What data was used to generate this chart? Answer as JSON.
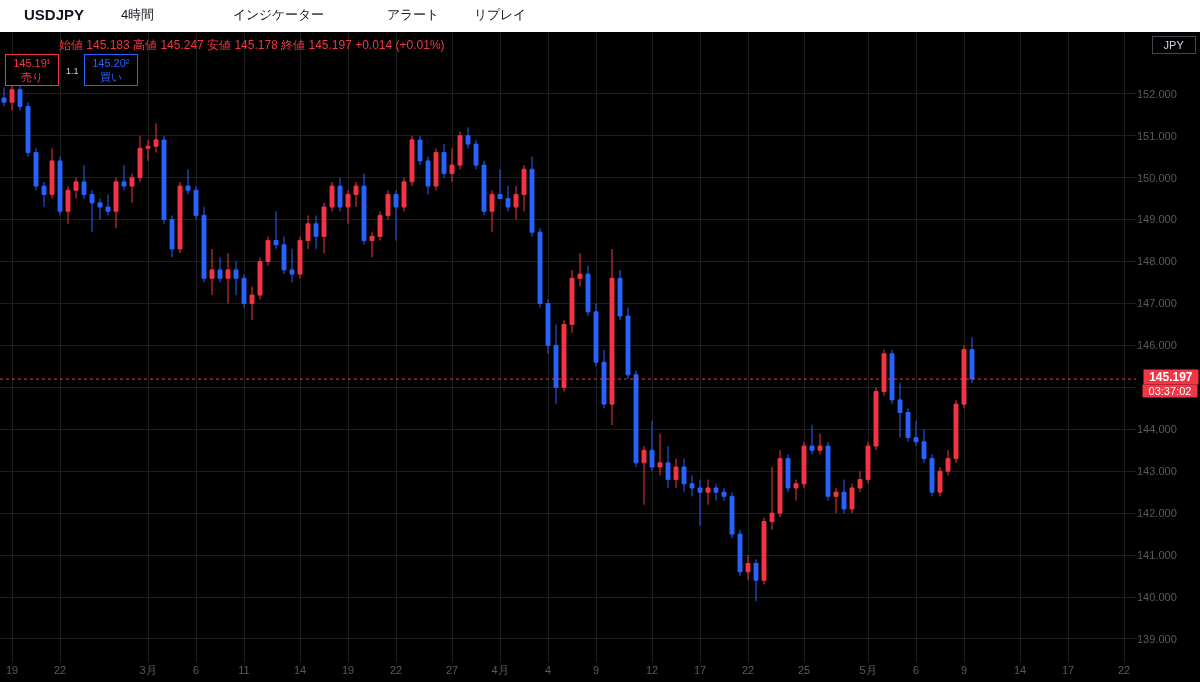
{
  "chart_data": {
    "type": "candlestick",
    "title": "USDJPY",
    "subtitle": "始値 145.183 高値 145.247 安値 145.178 終値 145.197 +0.014 (+0.01%)",
    "categories": [
      null,
      "19",
      null,
      null,
      null,
      null,
      null,
      "22",
      null,
      null,
      null,
      null,
      null,
      null,
      null,
      null,
      null,
      null,
      "3月",
      null,
      null,
      null,
      null,
      null,
      "6",
      null,
      null,
      null,
      null,
      null,
      "11",
      null,
      null,
      null,
      null,
      null,
      null,
      "14",
      null,
      null,
      null,
      null,
      null,
      "19",
      null,
      null,
      null,
      null,
      null,
      "22",
      null,
      null,
      null,
      null,
      null,
      null,
      "27",
      null,
      null,
      null,
      null,
      null,
      "4月",
      null,
      null,
      null,
      null,
      null,
      "4",
      null,
      null,
      null,
      null,
      null,
      "9",
      null,
      null,
      null,
      null,
      null,
      null,
      "12",
      null,
      null,
      null,
      null,
      null,
      "17",
      null,
      null,
      null,
      null,
      null,
      "22",
      null,
      null,
      null,
      null,
      null,
      null,
      "25",
      null,
      null,
      null,
      null,
      null,
      null,
      null,
      "5月",
      null,
      null,
      null,
      null,
      null,
      "6",
      null,
      null,
      null,
      null,
      null,
      "9",
      null,
      null,
      null,
      null,
      null,
      null,
      "14",
      null,
      null,
      null,
      null,
      null,
      "17",
      null,
      null,
      null,
      null,
      null,
      null,
      "22",
      null
    ],
    "ohlc": [
      [
        151.9,
        152.15,
        151.7,
        151.8
      ],
      [
        151.8,
        152.2,
        151.6,
        152.1
      ],
      [
        152.1,
        152.2,
        151.6,
        151.7
      ],
      [
        151.7,
        151.8,
        150.5,
        150.6
      ],
      [
        150.6,
        150.7,
        149.7,
        149.8
      ],
      [
        149.8,
        149.9,
        149.3,
        149.6
      ],
      [
        149.6,
        150.7,
        149.5,
        150.4
      ],
      [
        150.4,
        150.5,
        149.1,
        149.2
      ],
      [
        149.2,
        149.8,
        148.9,
        149.7
      ],
      [
        149.7,
        150.0,
        149.5,
        149.9
      ],
      [
        149.9,
        150.3,
        149.5,
        149.6
      ],
      [
        149.6,
        149.7,
        148.7,
        149.4
      ],
      [
        149.4,
        149.5,
        149.0,
        149.3
      ],
      [
        149.3,
        149.6,
        149.1,
        149.2
      ],
      [
        149.2,
        150.0,
        148.8,
        149.9
      ],
      [
        149.9,
        150.3,
        149.7,
        149.8
      ],
      [
        149.8,
        150.1,
        149.4,
        150.0
      ],
      [
        150.0,
        151.0,
        149.9,
        150.7
      ],
      [
        150.7,
        150.9,
        150.4,
        150.75
      ],
      [
        150.75,
        151.3,
        150.6,
        150.9
      ],
      [
        150.9,
        151.0,
        148.9,
        149.0
      ],
      [
        149.0,
        149.1,
        148.1,
        148.3
      ],
      [
        148.3,
        149.9,
        148.2,
        149.8
      ],
      [
        149.8,
        150.2,
        149.6,
        149.7
      ],
      [
        149.7,
        149.8,
        149.0,
        149.1
      ],
      [
        149.1,
        149.3,
        147.5,
        147.6
      ],
      [
        147.6,
        148.3,
        147.2,
        147.8
      ],
      [
        147.8,
        148.1,
        147.5,
        147.6
      ],
      [
        147.6,
        148.2,
        147.0,
        147.8
      ],
      [
        147.8,
        148.0,
        147.2,
        147.6
      ],
      [
        147.6,
        147.7,
        146.9,
        147.0
      ],
      [
        147.0,
        147.4,
        146.6,
        147.2
      ],
      [
        147.2,
        148.1,
        147.1,
        148.0
      ],
      [
        148.0,
        148.6,
        147.9,
        148.5
      ],
      [
        148.5,
        149.2,
        148.3,
        148.4
      ],
      [
        148.4,
        148.6,
        147.7,
        147.8
      ],
      [
        147.8,
        148.3,
        147.5,
        147.7
      ],
      [
        147.7,
        148.6,
        147.6,
        148.5
      ],
      [
        148.5,
        149.1,
        148.3,
        148.9
      ],
      [
        148.9,
        149.1,
        148.3,
        148.6
      ],
      [
        148.6,
        149.4,
        148.2,
        149.3
      ],
      [
        149.3,
        149.9,
        149.2,
        149.8
      ],
      [
        149.8,
        150.0,
        149.2,
        149.3
      ],
      [
        149.3,
        149.7,
        148.9,
        149.6
      ],
      [
        149.6,
        149.9,
        149.3,
        149.8
      ],
      [
        149.8,
        150.1,
        148.4,
        148.5
      ],
      [
        148.5,
        148.7,
        148.1,
        148.6
      ],
      [
        148.6,
        149.2,
        148.5,
        149.1
      ],
      [
        149.1,
        149.7,
        149.0,
        149.6
      ],
      [
        149.6,
        149.7,
        148.5,
        149.3
      ],
      [
        149.3,
        150.0,
        149.2,
        149.9
      ],
      [
        149.9,
        151.0,
        149.8,
        150.9
      ],
      [
        150.9,
        151.0,
        150.3,
        150.4
      ],
      [
        150.4,
        150.5,
        149.6,
        149.8
      ],
      [
        149.8,
        150.7,
        149.7,
        150.6
      ],
      [
        150.6,
        150.8,
        150.0,
        150.1
      ],
      [
        150.1,
        150.7,
        149.9,
        150.3
      ],
      [
        150.3,
        151.1,
        150.2,
        151.0
      ],
      [
        151.0,
        151.2,
        150.7,
        150.8
      ],
      [
        150.8,
        150.9,
        150.2,
        150.3
      ],
      [
        150.3,
        150.4,
        149.1,
        149.2
      ],
      [
        149.2,
        149.7,
        148.7,
        149.6
      ],
      [
        149.6,
        150.2,
        149.5,
        149.5
      ],
      [
        149.5,
        149.8,
        149.2,
        149.3
      ],
      [
        149.3,
        149.8,
        149.0,
        149.6
      ],
      [
        149.6,
        150.3,
        149.2,
        150.2
      ],
      [
        150.2,
        150.5,
        148.6,
        148.7
      ],
      [
        148.7,
        148.8,
        146.9,
        147.0
      ],
      [
        147.0,
        147.1,
        145.8,
        146.0
      ],
      [
        146.0,
        146.5,
        144.6,
        145.0
      ],
      [
        145.0,
        146.6,
        144.9,
        146.5
      ],
      [
        146.5,
        147.8,
        146.3,
        147.6
      ],
      [
        147.6,
        148.2,
        147.4,
        147.7
      ],
      [
        147.7,
        147.9,
        146.7,
        146.8
      ],
      [
        146.8,
        147.0,
        145.5,
        145.6
      ],
      [
        145.6,
        145.9,
        144.5,
        144.6
      ],
      [
        144.6,
        148.3,
        144.1,
        147.6
      ],
      [
        147.6,
        147.8,
        146.6,
        146.7
      ],
      [
        146.7,
        146.9,
        145.2,
        145.3
      ],
      [
        145.3,
        145.4,
        143.1,
        143.2
      ],
      [
        143.2,
        143.6,
        142.2,
        143.5
      ],
      [
        143.5,
        144.2,
        143.0,
        143.1
      ],
      [
        143.1,
        143.9,
        142.9,
        143.2
      ],
      [
        143.2,
        143.6,
        142.6,
        142.8
      ],
      [
        142.8,
        143.3,
        142.6,
        143.1
      ],
      [
        143.1,
        143.3,
        142.5,
        142.7
      ],
      [
        142.7,
        142.9,
        142.4,
        142.6
      ],
      [
        142.6,
        142.8,
        141.7,
        142.5
      ],
      [
        142.5,
        142.8,
        142.2,
        142.6
      ],
      [
        142.6,
        142.7,
        142.3,
        142.5
      ],
      [
        142.5,
        142.6,
        142.3,
        142.4
      ],
      [
        142.4,
        142.5,
        141.4,
        141.5
      ],
      [
        141.5,
        141.6,
        140.5,
        140.6
      ],
      [
        140.6,
        141.0,
        140.4,
        140.8
      ],
      [
        140.8,
        140.9,
        139.9,
        140.4
      ],
      [
        140.4,
        141.9,
        140.3,
        141.8
      ],
      [
        141.8,
        143.1,
        141.6,
        142.0
      ],
      [
        142.0,
        143.5,
        141.9,
        143.3
      ],
      [
        143.3,
        143.4,
        142.5,
        142.6
      ],
      [
        142.6,
        142.8,
        142.3,
        142.7
      ],
      [
        142.7,
        143.7,
        142.6,
        143.6
      ],
      [
        143.6,
        144.1,
        143.4,
        143.5
      ],
      [
        143.5,
        143.9,
        143.4,
        143.6
      ],
      [
        143.6,
        143.7,
        142.3,
        142.4
      ],
      [
        142.4,
        142.6,
        142.0,
        142.5
      ],
      [
        142.5,
        142.8,
        142.0,
        142.1
      ],
      [
        142.1,
        142.7,
        142.0,
        142.6
      ],
      [
        142.6,
        143.0,
        142.5,
        142.8
      ],
      [
        142.8,
        143.7,
        142.7,
        143.6
      ],
      [
        143.6,
        145.0,
        143.5,
        144.9
      ],
      [
        144.9,
        145.9,
        144.8,
        145.8
      ],
      [
        145.8,
        145.9,
        144.6,
        144.7
      ],
      [
        144.7,
        145.1,
        143.8,
        144.4
      ],
      [
        144.4,
        144.5,
        143.7,
        143.8
      ],
      [
        143.8,
        144.2,
        143.6,
        143.7
      ],
      [
        143.7,
        144.0,
        143.2,
        143.3
      ],
      [
        143.3,
        143.4,
        142.4,
        142.5
      ],
      [
        142.5,
        143.1,
        142.4,
        143.0
      ],
      [
        143.0,
        143.5,
        142.9,
        143.3
      ],
      [
        143.3,
        144.7,
        143.2,
        144.6
      ],
      [
        144.6,
        146.0,
        144.5,
        145.9
      ],
      [
        145.9,
        146.2,
        145.1,
        145.2
      ],
      null,
      null,
      null,
      null,
      null,
      null,
      null,
      null,
      null,
      null,
      null,
      null,
      null,
      null,
      null,
      null,
      null,
      null,
      null,
      null
    ],
    "colors": [
      "#2962ff",
      "#f23645",
      "#2962ff",
      "#2962ff",
      "#2962ff",
      "#2962ff",
      "#f23645",
      "#2962ff",
      "#f23645",
      "#f23645",
      "#2962ff",
      "#2962ff",
      "#2962ff",
      "#2962ff",
      "#f23645",
      "#2962ff",
      "#f23645",
      "#f23645",
      "#f23645",
      "#f23645",
      "#2962ff",
      "#2962ff",
      "#f23645",
      "#2962ff",
      "#2962ff",
      "#2962ff",
      "#f23645",
      "#2962ff",
      "#f23645",
      "#2962ff",
      "#2962ff",
      "#f23645",
      "#f23645",
      "#f23645",
      "#2962ff",
      "#2962ff",
      "#2962ff",
      "#f23645",
      "#f23645",
      "#2962ff",
      "#f23645",
      "#f23645",
      "#2962ff",
      "#f23645",
      "#f23645",
      "#2962ff",
      "#f23645",
      "#f23645",
      "#f23645",
      "#2962ff",
      "#f23645",
      "#f23645",
      "#2962ff",
      "#2962ff",
      "#f23645",
      "#2962ff",
      "#f23645",
      "#f23645",
      "#2962ff",
      "#2962ff",
      "#2962ff",
      "#f23645",
      "#2962ff",
      "#2962ff",
      "#f23645",
      "#f23645",
      "#2962ff",
      "#2962ff",
      "#2962ff",
      "#2962ff",
      "#f23645",
      "#f23645",
      "#f23645",
      "#2962ff",
      "#2962ff",
      "#2962ff",
      "#f23645",
      "#2962ff",
      "#2962ff",
      "#2962ff",
      "#f23645",
      "#2962ff",
      "#f23645",
      "#2962ff",
      "#f23645",
      "#2962ff",
      "#2962ff",
      "#2962ff",
      "#f23645",
      "#2962ff",
      "#2962ff",
      "#2962ff",
      "#2962ff",
      "#f23645",
      "#2962ff",
      "#f23645",
      "#f23645",
      "#f23645",
      "#2962ff",
      "#f23645",
      "#f23645",
      "#2962ff",
      "#f23645",
      "#2962ff",
      "#f23645",
      "#2962ff",
      "#f23645",
      "#f23645",
      "#f23645",
      "#f23645",
      "#f23645",
      "#2962ff",
      "#2962ff",
      "#2962ff",
      "#2962ff",
      "#2962ff",
      "#2962ff",
      "#f23645",
      "#f23645",
      "#f23645",
      "#f23645",
      "#2962ff",
      null,
      null,
      null,
      null,
      null,
      null,
      null,
      null,
      null,
      null,
      null,
      null,
      null,
      null,
      null,
      null,
      null,
      null,
      null,
      null
    ],
    "ylim": [
      138.45,
      153.45
    ],
    "yticks": [
      {
        "value": 139,
        "label": "139.000"
      },
      {
        "value": 140,
        "label": "140.000"
      },
      {
        "value": 141,
        "label": "141.000"
      },
      {
        "value": 142,
        "label": "142.000"
      },
      {
        "value": 143,
        "label": "143.000"
      },
      {
        "value": 144,
        "label": "144.000"
      },
      {
        "value": 145,
        "label": null
      },
      {
        "value": 146,
        "label": "146.000"
      },
      {
        "value": 147,
        "label": "147.000"
      },
      {
        "value": 148,
        "label": "148.000"
      },
      {
        "value": 149,
        "label": "149.000"
      },
      {
        "value": 150,
        "label": "150.000"
      },
      {
        "value": 151,
        "label": "151.000"
      },
      {
        "value": 152,
        "label": "152.000"
      }
    ],
    "grid": true,
    "ref_lines": [
      {
        "axis": "y",
        "value": 145.197,
        "label": "145.197",
        "color": "#f23645",
        "line_style": "dotted"
      }
    ],
    "annotations": [
      "4時間",
      "インジケーター",
      "アラート",
      "リプレイ",
      "145.19¹\n売り",
      "1.1",
      "145.20²\n買い",
      "JPY",
      "03:37:02"
    ]
  }
}
